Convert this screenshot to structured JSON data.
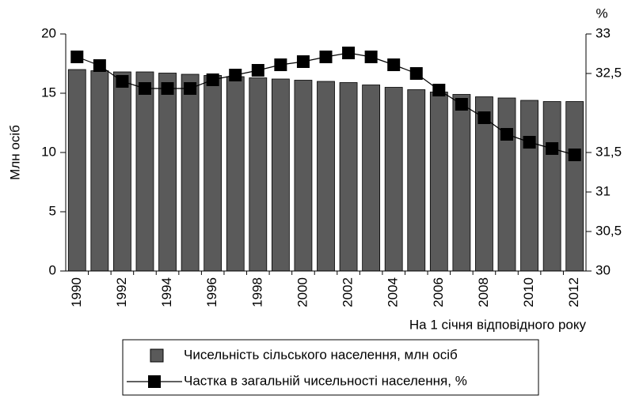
{
  "chart_data": {
    "type": "bar",
    "y_label": "Млн осіб",
    "y2_label": "%",
    "x_label": "На 1 січня відповідного року",
    "categories": [
      "1990",
      null,
      "1992",
      null,
      "1994",
      null,
      "1996",
      null,
      "1998",
      null,
      "2000",
      null,
      "2002",
      null,
      "2004",
      null,
      "2006",
      null,
      "2008",
      null,
      "2010",
      null,
      "2012"
    ],
    "series": [
      {
        "name": "Чисельність сільського населення, млн осіб",
        "type": "bar",
        "color": "#5a5a5a",
        "values": [
          17.0,
          16.9,
          16.8,
          16.8,
          16.7,
          16.6,
          16.5,
          16.4,
          16.3,
          16.2,
          16.1,
          16.0,
          15.9,
          15.7,
          15.5,
          15.3,
          15.1,
          14.9,
          14.7,
          14.6,
          14.4,
          14.3,
          14.3
        ]
      },
      {
        "name": "Частка в загальній чисельності населення, %",
        "type": "line",
        "axis": "y2",
        "color": "#000000",
        "values": [
          32.71,
          32.6,
          32.4,
          32.31,
          32.31,
          32.31,
          32.42,
          32.48,
          32.54,
          32.61,
          32.65,
          32.71,
          32.76,
          32.71,
          32.61,
          32.5,
          32.29,
          32.11,
          31.94,
          31.73,
          31.63,
          31.55,
          31.47
        ]
      }
    ],
    "ylim": [
      0,
      20
    ],
    "yticks": [
      0,
      5,
      10,
      15,
      20
    ],
    "y2lim": [
      30,
      33
    ],
    "y2ticks": [
      30,
      {
        "value": 30.5,
        "label": "30,5"
      },
      31,
      {
        "value": 31.5,
        "label": "31,5"
      },
      {
        "value": 32.5,
        "label": "32,5"
      },
      33
    ]
  }
}
